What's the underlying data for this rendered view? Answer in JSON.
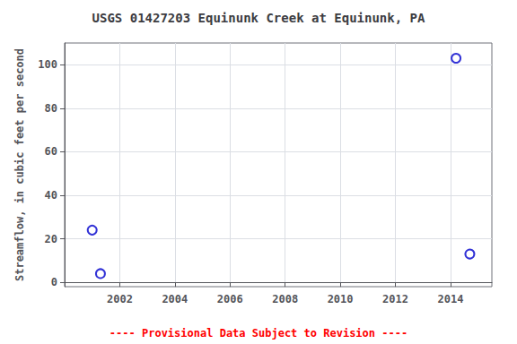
{
  "chart_data": {
    "type": "scatter",
    "title": "USGS 01427203 Equinunk Creek at Equinunk, PA",
    "ylabel": "Streamflow, in cubic feet per second",
    "annotations": [
      {
        "text": "---- Provisional Data Subject to Revision ----",
        "color": "#ff0000"
      }
    ],
    "x": [
      2001.0,
      2001.3,
      2014.2,
      2014.7
    ],
    "values": [
      24,
      4,
      103,
      13
    ],
    "color": "#0000cc",
    "marker": "circle",
    "xlim": [
      2000.0,
      2015.5
    ],
    "ylim": [
      -2,
      110
    ],
    "xticks": [
      2002,
      2004,
      2006,
      2008,
      2010,
      2012,
      2014
    ],
    "yticks": [
      0,
      20,
      40,
      60,
      80,
      100
    ],
    "grid": true
  }
}
